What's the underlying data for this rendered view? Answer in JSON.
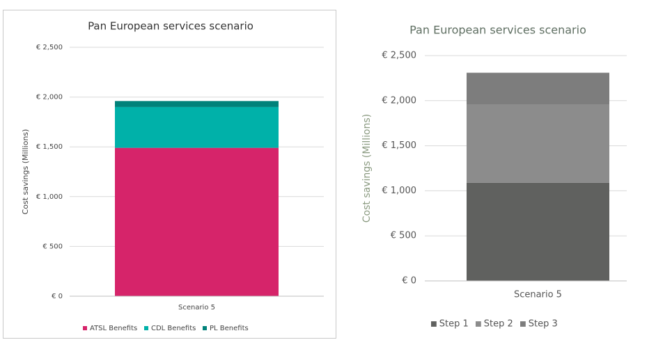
{
  "chart_data": [
    {
      "type": "bar",
      "stacked": true,
      "title": "Pan European services scenario",
      "ylabel": "Cost savings (Millions)",
      "categories": [
        "Scenario 5"
      ],
      "series": [
        {
          "name": "ATSL Benefits",
          "color": "#d6246a",
          "values": [
            1490
          ]
        },
        {
          "name": "CDL Benefits",
          "color": "#00b1a9",
          "values": [
            410
          ]
        },
        {
          "name": "PL Benefits",
          "color": "#00827a",
          "values": [
            60
          ]
        }
      ],
      "ylim": [
        0,
        2500
      ],
      "yticks": [
        {
          "value": 0,
          "label": "€ 0"
        },
        {
          "value": 500,
          "label": "€ 500"
        },
        {
          "value": 1000,
          "label": "€ 1,000"
        },
        {
          "value": 1500,
          "label": "€ 1,500"
        },
        {
          "value": 2000,
          "label": "€ 2,000"
        },
        {
          "value": 2500,
          "label": "€ 2,500"
        }
      ],
      "grid": true,
      "legend": "bottom"
    },
    {
      "type": "bar",
      "stacked": true,
      "title": "Pan European services scenario",
      "ylabel": "Cost savings (Millions)",
      "categories": [
        "Scenario 5"
      ],
      "series": [
        {
          "name": "Step 1",
          "color": "#60615f",
          "values": [
            1090
          ]
        },
        {
          "name": "Step 2",
          "color": "#8c8c8c",
          "values": [
            870
          ]
        },
        {
          "name": "Step 3",
          "color": "#7d7d7d",
          "values": [
            350
          ]
        }
      ],
      "ylim": [
        0,
        2500
      ],
      "yticks": [
        {
          "value": 0,
          "label": "€ 0"
        },
        {
          "value": 500,
          "label": "€ 500"
        },
        {
          "value": 1000,
          "label": "€ 1,000"
        },
        {
          "value": 1500,
          "label": "€ 1,500"
        },
        {
          "value": 2000,
          "label": "€ 2,000"
        },
        {
          "value": 2500,
          "label": "€ 2,500"
        }
      ],
      "grid": true,
      "legend": "bottom"
    }
  ]
}
